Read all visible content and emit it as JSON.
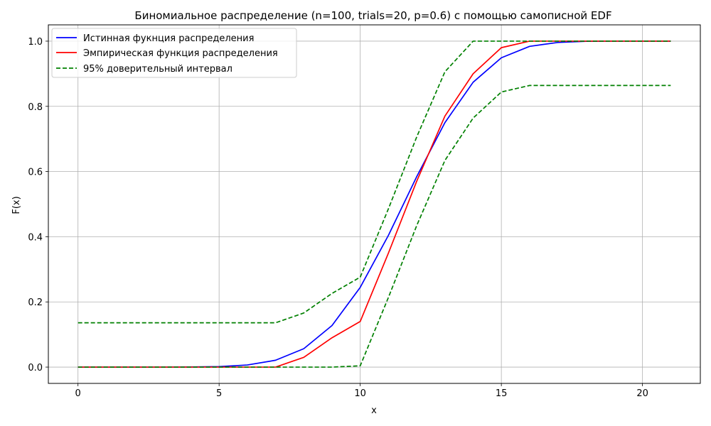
{
  "chart_data": {
    "type": "line",
    "title": "Биномиальное распределение (n=100, trials=20, p=0.6) с помощью самописной EDF",
    "xlabel": "x",
    "ylabel": "F(x)",
    "xlim": [
      -1.05,
      22.05
    ],
    "ylim": [
      -0.05,
      1.05
    ],
    "xticks": [
      0,
      5,
      10,
      15,
      20
    ],
    "yticks": [
      0.0,
      0.2,
      0.4,
      0.6,
      0.8,
      1.0
    ],
    "xtick_labels": [
      "0",
      "5",
      "10",
      "15",
      "20"
    ],
    "ytick_labels": [
      "0.0",
      "0.2",
      "0.4",
      "0.6",
      "0.8",
      "1.0"
    ],
    "grid": true,
    "legend_position": "top-left",
    "x": [
      0,
      1,
      2,
      3,
      4,
      5,
      6,
      7,
      8,
      9,
      10,
      11,
      12,
      13,
      14,
      15,
      16,
      17,
      18,
      19,
      20,
      21
    ],
    "series": [
      {
        "name": "Истинная фукнция распределения",
        "color": "#0000ff",
        "style": "solid",
        "values": [
          0.0,
          0.0,
          0.0,
          0.0,
          0.0003,
          0.0016,
          0.0065,
          0.021,
          0.0565,
          0.1275,
          0.2447,
          0.4044,
          0.5841,
          0.75,
          0.874,
          0.949,
          0.984,
          0.996,
          0.9995,
          1.0,
          1.0,
          1.0
        ]
      },
      {
        "name": "Эмпирическая функция распределения",
        "color": "#ff0000",
        "style": "solid",
        "values": [
          0.0,
          0.0,
          0.0,
          0.0,
          0.0,
          0.0,
          0.0,
          0.0,
          0.03,
          0.09,
          0.14,
          0.35,
          0.57,
          0.77,
          0.9,
          0.98,
          1.0,
          1.0,
          1.0,
          1.0,
          1.0,
          1.0
        ]
      },
      {
        "name": "95% доверительный интервал",
        "color": "#008000",
        "style": "dashed",
        "values": [
          0.136,
          0.136,
          0.136,
          0.136,
          0.136,
          0.136,
          0.136,
          0.136,
          0.166,
          0.226,
          0.276,
          0.486,
          0.706,
          0.906,
          1.0,
          1.0,
          1.0,
          1.0,
          1.0,
          1.0,
          1.0,
          1.0
        ]
      },
      {
        "name": "",
        "color": "#008000",
        "style": "dashed",
        "values": [
          0.0,
          0.0,
          0.0,
          0.0,
          0.0,
          0.0,
          0.0,
          0.0,
          0.0,
          0.0,
          0.004,
          0.214,
          0.434,
          0.634,
          0.764,
          0.844,
          0.864,
          0.864,
          0.864,
          0.864,
          0.864,
          0.864
        ]
      }
    ]
  }
}
